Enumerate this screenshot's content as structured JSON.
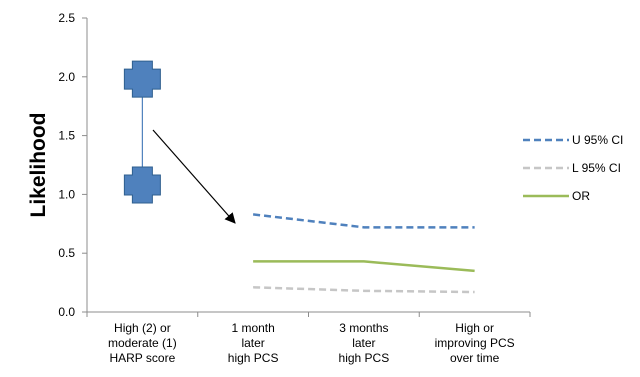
{
  "chart_data": {
    "type": "line",
    "ylabel": "Likelihood",
    "ylim": [
      0,
      2.5
    ],
    "yticks": [
      "0.0",
      "0.5",
      "1.0",
      "1.5",
      "2.0",
      "2.5"
    ],
    "categories": [
      [
        "High (2) or",
        "moderate (1)",
        "HARP score"
      ],
      [
        "1 month",
        "later",
        "high PCS"
      ],
      [
        "3 months",
        "later",
        "high PCS"
      ],
      [
        "High or",
        "improving PCS",
        "over time"
      ]
    ],
    "series": [
      {
        "name": "U 95% CI",
        "color": "#4f81bd",
        "dash": "dashed",
        "values": [
          null,
          0.83,
          0.72,
          0.72
        ]
      },
      {
        "name": "L 95% CI",
        "color": "#c6c6c6",
        "dash": "dashed",
        "values": [
          null,
          0.21,
          0.18,
          0.17
        ]
      },
      {
        "name": "OR",
        "color": "#9bbb59",
        "dash": "solid",
        "values": [
          null,
          0.43,
          0.43,
          0.35
        ]
      }
    ],
    "first_category_error_bar": {
      "upper": 1.98,
      "lower": 1.08,
      "color": "#4f81bd"
    },
    "legend_position": "right",
    "grid": false
  }
}
